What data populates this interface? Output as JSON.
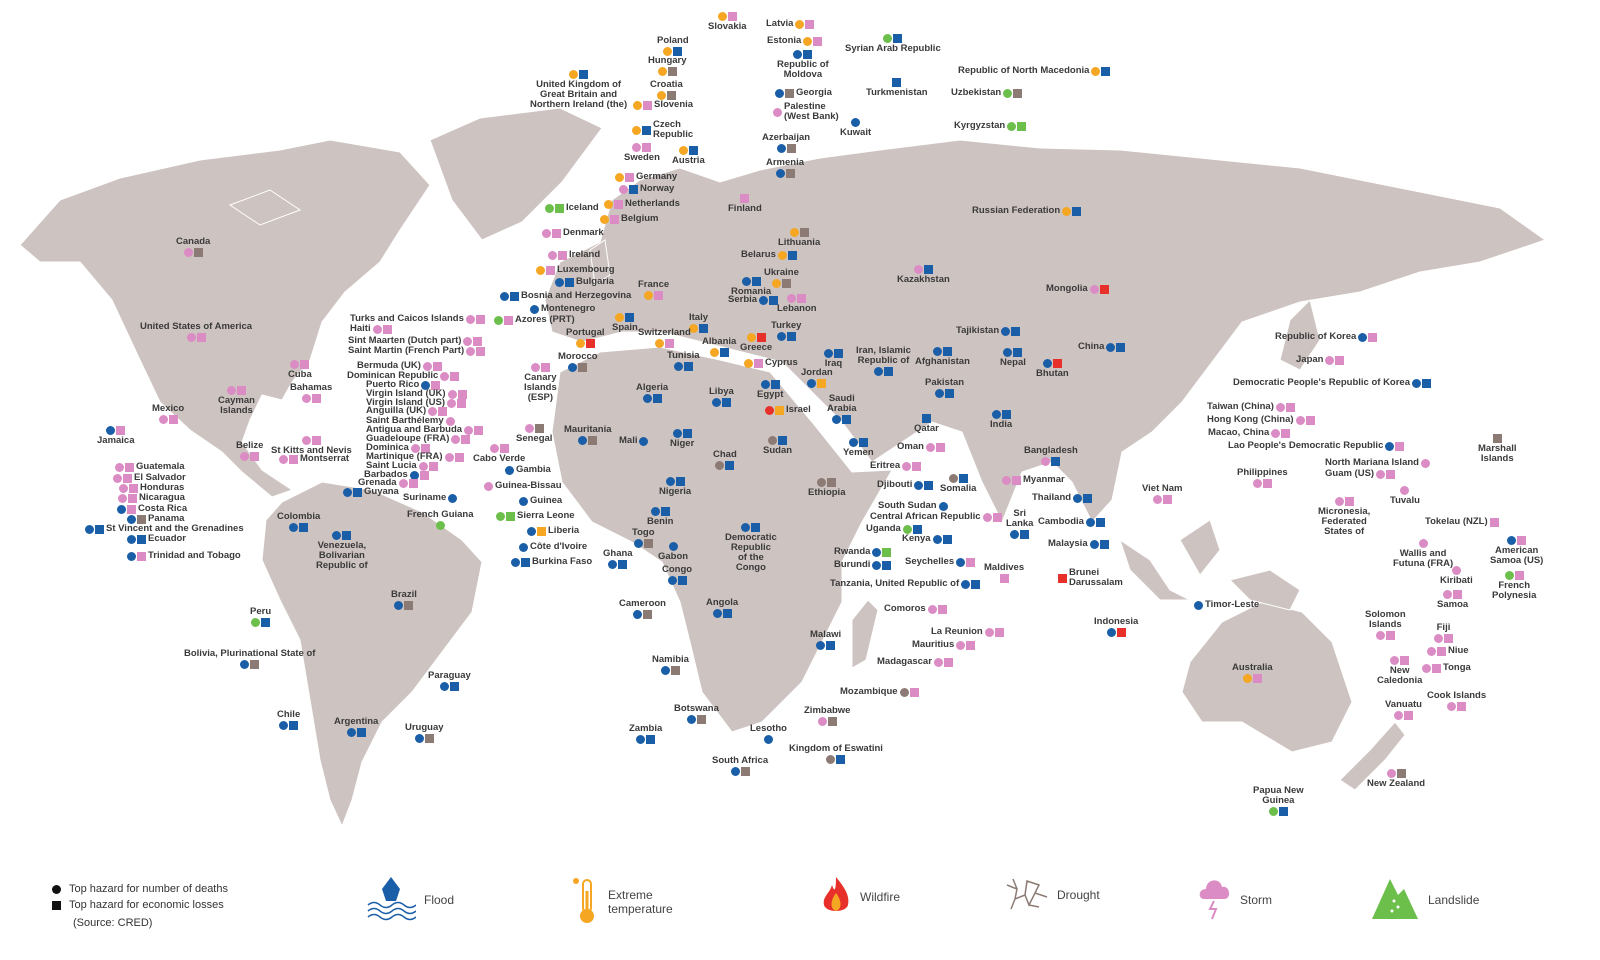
{
  "hazards": {
    "F": {
      "label": "Flood",
      "color": "#1a5ea8",
      "icon": "flood-icon"
    },
    "E": {
      "label": "Extreme\ntemperature",
      "color": "#f5a623",
      "icon": "thermometer-icon"
    },
    "W": {
      "label": "Wildfire",
      "color": "#e8302a",
      "icon": "flame-icon"
    },
    "D": {
      "label": "Drought",
      "color": "#8c7b74",
      "icon": "cracked-earth-icon"
    },
    "S": {
      "label": "Storm",
      "color": "#db8cc4",
      "icon": "storm-cloud-icon"
    },
    "L": {
      "label": "Landslide",
      "color": "#6dbf4b",
      "icon": "landslide-icon"
    }
  },
  "legend": {
    "circle_label": "Top hazard for number of deaths",
    "square_label": "Top hazard for economic losses",
    "source": "(Source: CRED)",
    "order": [
      "F",
      "E",
      "W",
      "D",
      "S",
      "L"
    ]
  },
  "map_colors": {
    "land": "#cdc3c0",
    "border": "#ffffff",
    "ocean": "#ffffff"
  },
  "countries": [
    {
      "name": "Canada",
      "death": "S",
      "loss": "D"
    },
    {
      "name": "United States of America",
      "death": "S",
      "loss": "S"
    },
    {
      "name": "Mexico",
      "death": "S",
      "loss": "S"
    },
    {
      "name": "Cuba",
      "death": "S",
      "loss": "S"
    },
    {
      "name": "Bahamas",
      "death": "S",
      "loss": "S"
    },
    {
      "name": "Cayman\nIslands",
      "death": "S",
      "loss": "S"
    },
    {
      "name": "Jamaica",
      "death": "F",
      "loss": "S"
    },
    {
      "name": "Belize",
      "death": "S",
      "loss": "S"
    },
    {
      "name": "St Kitts and Nevis",
      "death": "S",
      "loss": "S"
    },
    {
      "name": "Montserrat",
      "death": "S",
      "loss": "S"
    },
    {
      "name": "Turks and Caicos Islands",
      "death": "S",
      "loss": "S"
    },
    {
      "name": "Haiti",
      "death": "S",
      "loss": "S"
    },
    {
      "name": "Sint Maarten (Dutch part)",
      "death": "S",
      "loss": "S"
    },
    {
      "name": "Saint Martin (French Part)",
      "death": "S",
      "loss": "S"
    },
    {
      "name": "Bermuda (UK)",
      "death": "S",
      "loss": "S"
    },
    {
      "name": "Dominican Republic",
      "death": "S",
      "loss": "S"
    },
    {
      "name": "Puerto Rico",
      "death": "F",
      "loss": "S"
    },
    {
      "name": "Virgin Island (UK)",
      "death": "S",
      "loss": "S"
    },
    {
      "name": "Virgin Island (US)",
      "death": "S",
      "loss": "S"
    },
    {
      "name": "Anguilla (UK)",
      "death": "S",
      "loss": "S"
    },
    {
      "name": "Saint Barthélemy",
      "death": "S",
      "loss": null
    },
    {
      "name": "Antigua and Barbuda",
      "death": "S",
      "loss": "S"
    },
    {
      "name": "Guadeloupe (FRA)",
      "death": "S",
      "loss": "S"
    },
    {
      "name": "Dominica",
      "death": "S",
      "loss": "S"
    },
    {
      "name": "Martinique (FRA)",
      "death": "S",
      "loss": "S"
    },
    {
      "name": "Saint Lucia",
      "death": "S",
      "loss": "S"
    },
    {
      "name": "Barbados",
      "death": "F",
      "loss": "S"
    },
    {
      "name": "Grenada",
      "death": "S",
      "loss": "S"
    },
    {
      "name": "Guatemala",
      "death": "S",
      "loss": "S"
    },
    {
      "name": "El Salvador",
      "death": "S",
      "loss": "S"
    },
    {
      "name": "Honduras",
      "death": "S",
      "loss": "S"
    },
    {
      "name": "Nicaragua",
      "death": "S",
      "loss": "S"
    },
    {
      "name": "Costa Rica",
      "death": "F",
      "loss": "S"
    },
    {
      "name": "Panama",
      "death": "F",
      "loss": "D"
    },
    {
      "name": "St Vincent and the Grenadines",
      "death": "F",
      "loss": "F"
    },
    {
      "name": "Ecuador",
      "death": "F",
      "loss": "F"
    },
    {
      "name": "Trinidad and Tobago",
      "death": "F",
      "loss": "S"
    },
    {
      "name": "Guyana",
      "death": "F",
      "loss": "F"
    },
    {
      "name": "Suriname",
      "death": "F",
      "loss": null
    },
    {
      "name": "French Guiana",
      "death": "L",
      "loss": null
    },
    {
      "name": "Colombia",
      "death": "F",
      "loss": "F"
    },
    {
      "name": "Venezuela,\nBolivarian\nRepublic of",
      "death": "F",
      "loss": "F"
    },
    {
      "name": "Peru",
      "death": "L",
      "loss": "F"
    },
    {
      "name": "Brazil",
      "death": "F",
      "loss": "D"
    },
    {
      "name": "Bolivia, Plurinational State of",
      "death": "F",
      "loss": "D"
    },
    {
      "name": "Paraguay",
      "death": "F",
      "loss": "F"
    },
    {
      "name": "Chile",
      "death": "F",
      "loss": "F"
    },
    {
      "name": "Argentina",
      "death": "F",
      "loss": "F"
    },
    {
      "name": "Uruguay",
      "death": "F",
      "loss": "D"
    },
    {
      "name": "Slovakia",
      "death": "E",
      "loss": "S"
    },
    {
      "name": "Latvia",
      "death": "E",
      "loss": "S"
    },
    {
      "name": "Estonia",
      "death": "E",
      "loss": "S"
    },
    {
      "name": "Poland",
      "death": "E",
      "loss": "F"
    },
    {
      "name": "Hungary",
      "death": "E",
      "loss": "D"
    },
    {
      "name": "Croatia",
      "death": "E",
      "loss": "D"
    },
    {
      "name": "Republic of\nMoldova",
      "death": "F",
      "loss": "F"
    },
    {
      "name": "United Kingdom of\nGreat Britain and\nNorthern Ireland (the)",
      "death": "E",
      "loss": "F"
    },
    {
      "name": "Georgia",
      "death": "F",
      "loss": "D"
    },
    {
      "name": "Slovenia",
      "death": "E",
      "loss": "S"
    },
    {
      "name": "Palestine\n(West Bank)",
      "death": "S",
      "loss": null
    },
    {
      "name": "Czech\nRepublic",
      "death": "E",
      "loss": "F"
    },
    {
      "name": "Sweden",
      "death": "S",
      "loss": "S"
    },
    {
      "name": "Austria",
      "death": "E",
      "loss": "F"
    },
    {
      "name": "Azerbaijan",
      "death": "F",
      "loss": "D"
    },
    {
      "name": "Armenia",
      "death": "F",
      "loss": "D"
    },
    {
      "name": "Germany",
      "death": "E",
      "loss": "S"
    },
    {
      "name": "Norway",
      "death": "S",
      "loss": "F"
    },
    {
      "name": "Netherlands",
      "death": "E",
      "loss": "S"
    },
    {
      "name": "Finland",
      "death": null,
      "loss": "S"
    },
    {
      "name": "Iceland",
      "death": "L",
      "loss": "L"
    },
    {
      "name": "Belgium",
      "death": "E",
      "loss": "S"
    },
    {
      "name": "Denmark",
      "death": "S",
      "loss": "S"
    },
    {
      "name": "Lithuania",
      "death": "E",
      "loss": "D"
    },
    {
      "name": "Ireland",
      "death": "S",
      "loss": "S"
    },
    {
      "name": "Belarus",
      "death": "E",
      "loss": "F"
    },
    {
      "name": "Luxembourg",
      "death": "E",
      "loss": "S"
    },
    {
      "name": "Ukraine",
      "death": "E",
      "loss": "D"
    },
    {
      "name": "Bulgaria",
      "death": "F",
      "loss": "F"
    },
    {
      "name": "France",
      "death": "E",
      "loss": "S"
    },
    {
      "name": "Romania",
      "death": "F",
      "loss": "F"
    },
    {
      "name": "Bosnia and Herzegovina",
      "death": "F",
      "loss": "F"
    },
    {
      "name": "Serbia",
      "death": "F",
      "loss": "F"
    },
    {
      "name": "Lebanon",
      "death": "S",
      "loss": "S"
    },
    {
      "name": "Montenegro",
      "death": "F",
      "loss": null
    },
    {
      "name": "Azores (PRT)",
      "death": "L",
      "loss": "S"
    },
    {
      "name": "Spain",
      "death": "E",
      "loss": "F"
    },
    {
      "name": "Italy",
      "death": "E",
      "loss": "F"
    },
    {
      "name": "Switzerland",
      "death": "E",
      "loss": "S"
    },
    {
      "name": "Portugal",
      "death": "E",
      "loss": "W"
    },
    {
      "name": "Turkey",
      "death": "F",
      "loss": "F"
    },
    {
      "name": "Albania",
      "death": "E",
      "loss": "F"
    },
    {
      "name": "Greece",
      "death": "E",
      "loss": "W"
    },
    {
      "name": "Cyprus",
      "death": "E",
      "loss": "S"
    },
    {
      "name": "Morocco",
      "death": "F",
      "loss": "D"
    },
    {
      "name": "Tunisia",
      "death": "F",
      "loss": "F"
    },
    {
      "name": "Canary\nIslands\n(ESP)",
      "death": "S",
      "loss": "S"
    },
    {
      "name": "Algeria",
      "death": "F",
      "loss": "F"
    },
    {
      "name": "Libya",
      "death": "F",
      "loss": "F"
    },
    {
      "name": "Egypt",
      "death": "F",
      "loss": "F"
    },
    {
      "name": "Israel",
      "death": "W",
      "loss": "E"
    },
    {
      "name": "Jordan",
      "death": "F",
      "loss": "E"
    },
    {
      "name": "Iraq",
      "death": "F",
      "loss": "F"
    },
    {
      "name": "Syrian Arab Republic",
      "death": "L",
      "loss": "F"
    },
    {
      "name": "Kuwait",
      "death": "F",
      "loss": null
    },
    {
      "name": "Turkmenistan",
      "death": null,
      "loss": "F"
    },
    {
      "name": "Republic of North Macedonia",
      "death": "E",
      "loss": "F"
    },
    {
      "name": "Uzbekistan",
      "death": "L",
      "loss": "D"
    },
    {
      "name": "Kyrgyzstan",
      "death": "L",
      "loss": "L"
    },
    {
      "name": "Russian Federation",
      "death": "E",
      "loss": "F"
    },
    {
      "name": "Kazakhstan",
      "death": "S",
      "loss": "F"
    },
    {
      "name": "Tajikistan",
      "death": "F",
      "loss": "F"
    },
    {
      "name": "Mongolia",
      "death": "S",
      "loss": "W"
    },
    {
      "name": "Iran, Islamic\nRepublic of",
      "death": "F",
      "loss": "F"
    },
    {
      "name": "Afghanistan",
      "death": "F",
      "loss": "F"
    },
    {
      "name": "Nepal",
      "death": "F",
      "loss": "F"
    },
    {
      "name": "Bhutan",
      "death": "F",
      "loss": "W"
    },
    {
      "name": "China",
      "death": "F",
      "loss": "F"
    },
    {
      "name": "Pakistan",
      "death": "F",
      "loss": "F"
    },
    {
      "name": "Saudi\nArabia",
      "death": "F",
      "loss": "F"
    },
    {
      "name": "Qatar",
      "death": null,
      "loss": "F"
    },
    {
      "name": "India",
      "death": "F",
      "loss": "F"
    },
    {
      "name": "Oman",
      "death": "S",
      "loss": "S"
    },
    {
      "name": "Yemen",
      "death": "F",
      "loss": "F"
    },
    {
      "name": "Sudan",
      "death": "D",
      "loss": "F"
    },
    {
      "name": "Chad",
      "death": "D",
      "loss": "F"
    },
    {
      "name": "Mali",
      "death": "F",
      "loss": null
    },
    {
      "name": "Niger",
      "death": "F",
      "loss": "F"
    },
    {
      "name": "Mauritania",
      "death": "F",
      "loss": "D"
    },
    {
      "name": "Senegal",
      "death": "S",
      "loss": "D"
    },
    {
      "name": "Cabo Verde",
      "death": "S",
      "loss": "S"
    },
    {
      "name": "Gambia",
      "death": "F",
      "loss": null
    },
    {
      "name": "Guinea-Bissau",
      "death": "S",
      "loss": null
    },
    {
      "name": "Guinea",
      "death": "F",
      "loss": null
    },
    {
      "name": "Sierra Leone",
      "death": "L",
      "loss": "L"
    },
    {
      "name": "Liberia",
      "death": "F",
      "loss": "E"
    },
    {
      "name": "Côte d'Ivoire",
      "death": "F",
      "loss": null
    },
    {
      "name": "Burkina Faso",
      "death": "F",
      "loss": "F"
    },
    {
      "name": "Nigeria",
      "death": "F",
      "loss": "F"
    },
    {
      "name": "Benin",
      "death": "F",
      "loss": "F"
    },
    {
      "name": "Togo",
      "death": "F",
      "loss": "D"
    },
    {
      "name": "Ghana",
      "death": "F",
      "loss": "F"
    },
    {
      "name": "Gabon",
      "death": "F",
      "loss": null
    },
    {
      "name": "Congo",
      "death": "F",
      "loss": "F"
    },
    {
      "name": "Cameroon",
      "death": "F",
      "loss": "D"
    },
    {
      "name": "Democratic\nRepublic\nof the\nCongo",
      "death": "F",
      "loss": "F"
    },
    {
      "name": "Eritrea",
      "death": "S",
      "loss": "S"
    },
    {
      "name": "Ethiopia",
      "death": "D",
      "loss": "D"
    },
    {
      "name": "Djibouti",
      "death": "F",
      "loss": "F"
    },
    {
      "name": "Somalia",
      "death": "D",
      "loss": "F"
    },
    {
      "name": "South Sudan",
      "death": "F",
      "loss": null
    },
    {
      "name": "Central African Republic",
      "death": "S",
      "loss": "S"
    },
    {
      "name": "Uganda",
      "death": "L",
      "loss": "F"
    },
    {
      "name": "Kenya",
      "death": "F",
      "loss": "F"
    },
    {
      "name": "Rwanda",
      "death": "F",
      "loss": "L"
    },
    {
      "name": "Burundi",
      "death": "F",
      "loss": "F"
    },
    {
      "name": "Seychelles",
      "death": "F",
      "loss": "S"
    },
    {
      "name": "Tanzania, United Republic of",
      "death": "F",
      "loss": "F"
    },
    {
      "name": "Comoros",
      "death": "S",
      "loss": "S"
    },
    {
      "name": "La Reunion",
      "death": "S",
      "loss": "S"
    },
    {
      "name": "Mauritius",
      "death": "S",
      "loss": "S"
    },
    {
      "name": "Madagascar",
      "death": "S",
      "loss": "S"
    },
    {
      "name": "Malawi",
      "death": "F",
      "loss": "F"
    },
    {
      "name": "Angola",
      "death": "F",
      "loss": "F"
    },
    {
      "name": "Namibia",
      "death": "F",
      "loss": "D"
    },
    {
      "name": "Botswana",
      "death": "F",
      "loss": "D"
    },
    {
      "name": "Zambia",
      "death": "F",
      "loss": "F"
    },
    {
      "name": "Mozambique",
      "death": "D",
      "loss": "S"
    },
    {
      "name": "Zimbabwe",
      "death": "S",
      "loss": "D"
    },
    {
      "name": "Lesotho",
      "death": "F",
      "loss": null
    },
    {
      "name": "Kingdom of Eswatini",
      "death": "D",
      "loss": "F"
    },
    {
      "name": "South Africa",
      "death": "F",
      "loss": "D"
    },
    {
      "name": "Sri\nLanka",
      "death": "F",
      "loss": "F"
    },
    {
      "name": "Maldives",
      "death": null,
      "loss": "S"
    },
    {
      "name": "Bangladesh",
      "death": "S",
      "loss": "F"
    },
    {
      "name": "Myanmar",
      "death": "S",
      "loss": "S"
    },
    {
      "name": "Thailand",
      "death": "F",
      "loss": "F"
    },
    {
      "name": "Cambodia",
      "death": "F",
      "loss": "F"
    },
    {
      "name": "Malaysia",
      "death": "F",
      "loss": "F"
    },
    {
      "name": "Brunei\nDarussalam",
      "death": null,
      "loss": "W"
    },
    {
      "name": "Indonesia",
      "death": "F",
      "loss": "W"
    },
    {
      "name": "Viet Nam",
      "death": "S",
      "loss": "S"
    },
    {
      "name": "Philippines",
      "death": "S",
      "loss": "S"
    },
    {
      "name": "Timor-Leste",
      "death": "F",
      "loss": null
    },
    {
      "name": "Republic of Korea",
      "death": "F",
      "loss": "S"
    },
    {
      "name": "Japan",
      "death": "S",
      "loss": "S"
    },
    {
      "name": "Democratic People's Republic of Korea",
      "death": "F",
      "loss": "F"
    },
    {
      "name": "Taiwan (China)",
      "death": "S",
      "loss": "S"
    },
    {
      "name": "Hong Kong (China)",
      "death": "S",
      "loss": "S"
    },
    {
      "name": "Macao, China",
      "death": "S",
      "loss": "S"
    },
    {
      "name": "Lao People's Democratic Republic",
      "death": "F",
      "loss": "S"
    },
    {
      "name": "North Mariana Island",
      "death": "S",
      "loss": null
    },
    {
      "name": "Guam (US)",
      "death": "S",
      "loss": "S"
    },
    {
      "name": "Marshall\nIslands",
      "death": null,
      "loss": "D"
    },
    {
      "name": "Tuvalu",
      "death": "S",
      "loss": null
    },
    {
      "name": "Micronesia,\nFederated\nStates of",
      "death": "S",
      "loss": "S"
    },
    {
      "name": "Tokelau (NZL)",
      "death": null,
      "loss": "S"
    },
    {
      "name": "Wallis and\nFutuna (FRA)",
      "death": "S",
      "loss": null
    },
    {
      "name": "American\nSamoa (US)",
      "death": "F",
      "loss": "S"
    },
    {
      "name": "Kiribati",
      "death": "S",
      "loss": null
    },
    {
      "name": "French\nPolynesia",
      "death": "L",
      "loss": "S"
    },
    {
      "name": "Samoa",
      "death": "S",
      "loss": "S"
    },
    {
      "name": "Solomon\nIslands",
      "death": "S",
      "loss": "S"
    },
    {
      "name": "Fiji",
      "death": "S",
      "loss": "S"
    },
    {
      "name": "Niue",
      "death": "S",
      "loss": "S"
    },
    {
      "name": "Tonga",
      "death": "S",
      "loss": "S"
    },
    {
      "name": "New\nCaledonia",
      "death": "S",
      "loss": "S"
    },
    {
      "name": "Cook Islands",
      "death": "S",
      "loss": "S"
    },
    {
      "name": "Vanuatu",
      "death": "S",
      "loss": "S"
    },
    {
      "name": "Australia",
      "death": "E",
      "loss": "S"
    },
    {
      "name": "New Zealand",
      "death": "S",
      "loss": "D"
    },
    {
      "name": "Papua New\nGuinea",
      "death": "L",
      "loss": "F"
    }
  ]
}
